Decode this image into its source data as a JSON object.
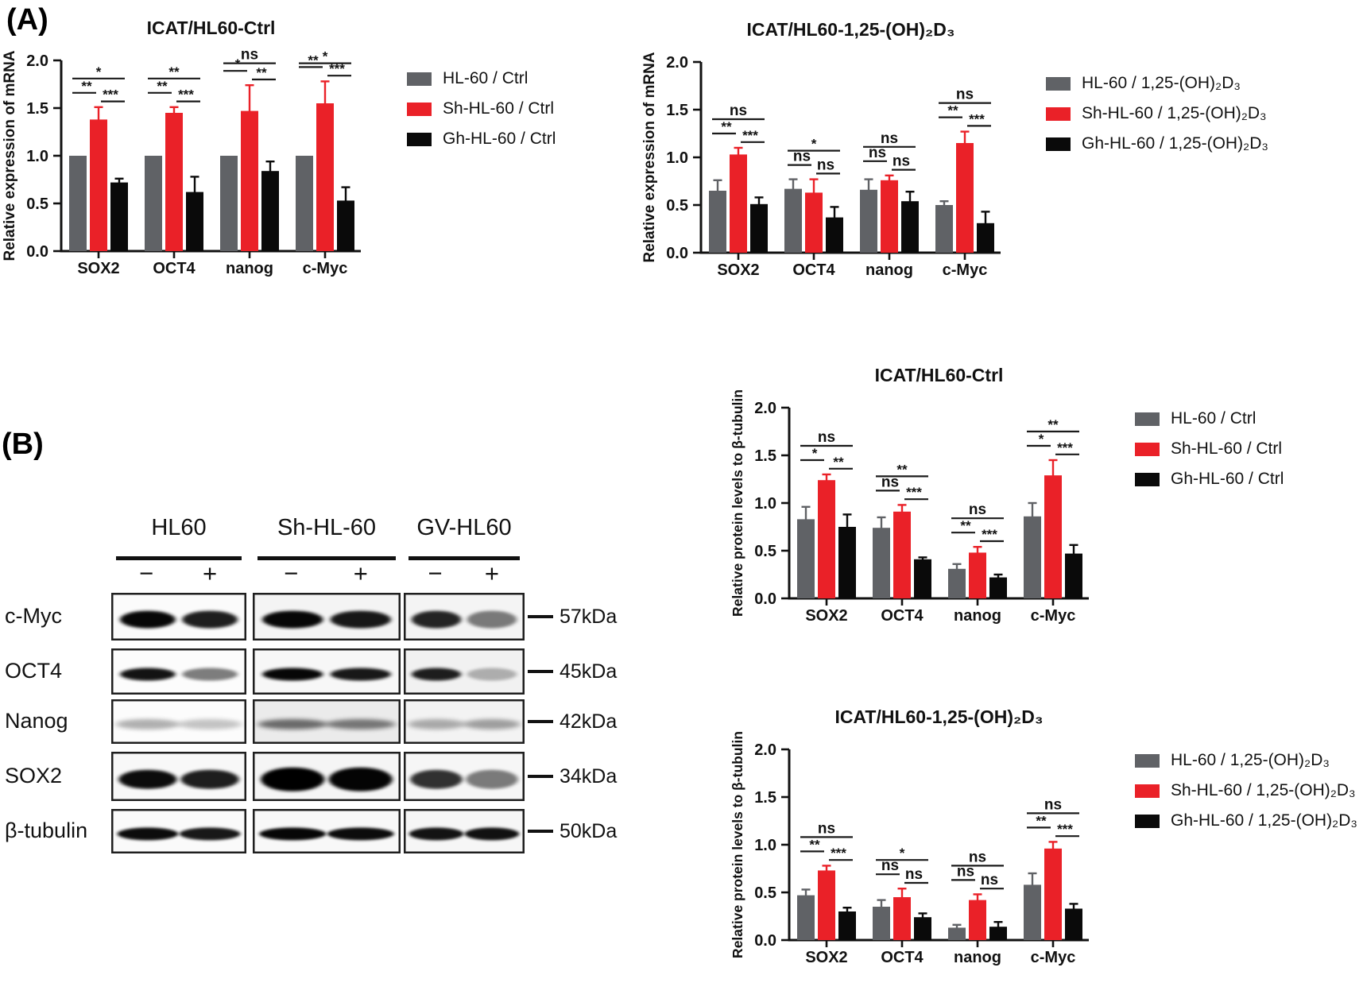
{
  "panels": {
    "a_label": "(A)",
    "b_label": "(B)"
  },
  "colors": {
    "gray": "#606266",
    "red": "#ea2128",
    "black": "#0a0a0a"
  },
  "chart_data": [
    {
      "type": "bar",
      "title": "ICAT/HL60-Ctrl",
      "ylabel": "Relative expression of mRNA",
      "categories": [
        "SOX2",
        "OCT4",
        "nanog",
        "c-Myc"
      ],
      "ylim": [
        0,
        2
      ],
      "yticks": [
        "0.0",
        "0.5",
        "1.0",
        "1.5",
        "2.0"
      ],
      "legend_position": "right",
      "grid": false,
      "series": [
        {
          "name": "HL-60 / Ctrl",
          "color": "#606266",
          "values": [
            1.0,
            1.0,
            1.0,
            1.0
          ],
          "errors": [
            0,
            0,
            0,
            0
          ]
        },
        {
          "name": "Sh-HL-60 / Ctrl",
          "color": "#ea2128",
          "values": [
            1.38,
            1.45,
            1.47,
            1.55
          ],
          "errors": [
            0.13,
            0.06,
            0.27,
            0.23
          ]
        },
        {
          "name": "Gh-HL-60 / Ctrl",
          "color": "#0a0a0a",
          "values": [
            0.72,
            0.62,
            0.84,
            0.53
          ],
          "errors": [
            0.04,
            0.16,
            0.1,
            0.14
          ]
        }
      ],
      "significance": [
        {
          "left": "**",
          "top": "*",
          "right": "***"
        },
        {
          "left": "**",
          "top": "**",
          "right": "***"
        },
        {
          "left": "*",
          "top": "ns",
          "right": "**"
        },
        {
          "left": "**",
          "top": "*",
          "right": "***"
        }
      ]
    },
    {
      "type": "bar",
      "title": "ICAT/HL60-1,25-(OH)₂D₃",
      "ylabel": "Relative expression of mRNA",
      "categories": [
        "SOX2",
        "OCT4",
        "nanog",
        "c-Myc"
      ],
      "ylim": [
        0,
        2
      ],
      "yticks": [
        "0.0",
        "0.5",
        "1.0",
        "1.5",
        "2.0"
      ],
      "legend_position": "right",
      "grid": false,
      "series": [
        {
          "name": "HL-60 / 1,25-(OH)₂D₃",
          "color": "#606266",
          "values": [
            0.65,
            0.67,
            0.66,
            0.5
          ],
          "errors": [
            0.11,
            0.1,
            0.11,
            0.04
          ]
        },
        {
          "name": "Sh-HL-60 / 1,25-(OH)₂D₃",
          "color": "#ea2128",
          "values": [
            1.03,
            0.63,
            0.76,
            1.15
          ],
          "errors": [
            0.07,
            0.14,
            0.05,
            0.12
          ]
        },
        {
          "name": "Gh-HL-60 / 1,25-(OH)₂D₃",
          "color": "#0a0a0a",
          "values": [
            0.51,
            0.37,
            0.54,
            0.31
          ],
          "errors": [
            0.07,
            0.11,
            0.1,
            0.12
          ]
        }
      ],
      "significance": [
        {
          "left": "**",
          "top": "ns",
          "right": "***"
        },
        {
          "left": "ns",
          "top": "*",
          "right": "ns"
        },
        {
          "left": "ns",
          "top": "ns",
          "right": "ns"
        },
        {
          "left": "**",
          "top": "ns",
          "right": "***"
        }
      ]
    },
    {
      "type": "bar",
      "title": "ICAT/HL60-Ctrl",
      "ylabel": "Relative protein levels to  β-tubulin",
      "categories": [
        "SOX2",
        "OCT4",
        "nanog",
        "c-Myc"
      ],
      "ylim": [
        0,
        2
      ],
      "yticks": [
        "0.0",
        "0.5",
        "1.0",
        "1.5",
        "2.0"
      ],
      "legend_position": "right",
      "grid": false,
      "series": [
        {
          "name": "HL-60 / Ctrl",
          "color": "#606266",
          "values": [
            0.83,
            0.74,
            0.31,
            0.86
          ],
          "errors": [
            0.13,
            0.11,
            0.05,
            0.14
          ]
        },
        {
          "name": "Sh-HL-60 / Ctrl",
          "color": "#ea2128",
          "values": [
            1.24,
            0.91,
            0.48,
            1.29
          ],
          "errors": [
            0.06,
            0.07,
            0.06,
            0.16
          ]
        },
        {
          "name": "Gh-HL-60 / Ctrl",
          "color": "#0a0a0a",
          "values": [
            0.75,
            0.41,
            0.22,
            0.47
          ],
          "errors": [
            0.13,
            0.02,
            0.03,
            0.09
          ]
        }
      ],
      "significance": [
        {
          "left": "*",
          "top": "ns",
          "right": "**"
        },
        {
          "left": "ns",
          "top": "**",
          "right": "***"
        },
        {
          "left": "**",
          "top": "ns",
          "right": "***"
        },
        {
          "left": "*",
          "top": "**",
          "right": "***"
        }
      ]
    },
    {
      "type": "bar",
      "title": "ICAT/HL60-1,25-(OH)₂D₃",
      "ylabel": "Relative protein levels to  β-tubulin",
      "categories": [
        "SOX2",
        "OCT4",
        "nanog",
        "c-Myc"
      ],
      "ylim": [
        0,
        2
      ],
      "yticks": [
        "0.0",
        "0.5",
        "1.0",
        "1.5",
        "2.0"
      ],
      "legend_position": "right",
      "grid": false,
      "series": [
        {
          "name": "HL-60 / 1,25-(OH)₂D₃",
          "color": "#606266",
          "values": [
            0.47,
            0.35,
            0.13,
            0.58
          ],
          "errors": [
            0.06,
            0.07,
            0.03,
            0.12
          ]
        },
        {
          "name": "Sh-HL-60 / 1,25-(OH)₂D₃",
          "color": "#ea2128",
          "values": [
            0.73,
            0.45,
            0.42,
            0.96
          ],
          "errors": [
            0.05,
            0.09,
            0.06,
            0.07
          ]
        },
        {
          "name": "Gh-HL-60 / 1,25-(OH)₂D₃",
          "color": "#0a0a0a",
          "values": [
            0.3,
            0.24,
            0.14,
            0.33
          ],
          "errors": [
            0.04,
            0.04,
            0.05,
            0.05
          ]
        }
      ],
      "significance": [
        {
          "left": "**",
          "top": "ns",
          "right": "***"
        },
        {
          "left": "ns",
          "top": "*",
          "right": "ns"
        },
        {
          "left": "ns",
          "top": "ns",
          "right": "ns"
        },
        {
          "left": "**",
          "top": "ns",
          "right": "***"
        }
      ]
    }
  ],
  "blot": {
    "groups": [
      {
        "name": "HL60",
        "lanes": [
          "−",
          "+"
        ]
      },
      {
        "name": "Sh-HL-60",
        "lanes": [
          "−",
          "+"
        ]
      },
      {
        "name": "GV-HL60",
        "lanes": [
          "−",
          "+"
        ]
      }
    ],
    "rows": [
      {
        "protein": "c-Myc",
        "mw": "57kDa",
        "bands": [
          [
            0.97,
            0.88
          ],
          [
            0.97,
            0.9
          ],
          [
            0.85,
            0.5
          ]
        ],
        "bg": [
          "#fbfbfb",
          "#f4f4f4",
          "#f4f4f4"
        ]
      },
      {
        "protein": "OCT4",
        "mw": "45kDa",
        "bands": [
          [
            0.92,
            0.5
          ],
          [
            0.97,
            0.9
          ],
          [
            0.88,
            0.28
          ]
        ],
        "bg": [
          "#fcfcfc",
          "#f7f7f7",
          "#f1f1f1"
        ]
      },
      {
        "protein": "Nanog",
        "mw": "42kDa",
        "bands": [
          [
            0.3,
            0.22
          ],
          [
            0.55,
            0.5
          ],
          [
            0.3,
            0.35
          ]
        ],
        "bg": [
          "#fcfcfc",
          "#ebebeb",
          "#f3f3f3"
        ]
      },
      {
        "protein": "SOX2",
        "mw": "34kDa",
        "bands": [
          [
            0.95,
            0.88
          ],
          [
            1.0,
            0.98
          ],
          [
            0.8,
            0.5
          ]
        ],
        "bg": [
          "#f8f8f8",
          "#f5f5f5",
          "#f6f6f6"
        ]
      },
      {
        "protein": "β-tubulin",
        "mw": "50kDa",
        "bands": [
          [
            0.95,
            0.9
          ],
          [
            0.97,
            0.95
          ],
          [
            0.92,
            0.93
          ]
        ],
        "bg": [
          "#fafafa",
          "#f8f8f8",
          "#f6f6f6"
        ]
      }
    ]
  }
}
